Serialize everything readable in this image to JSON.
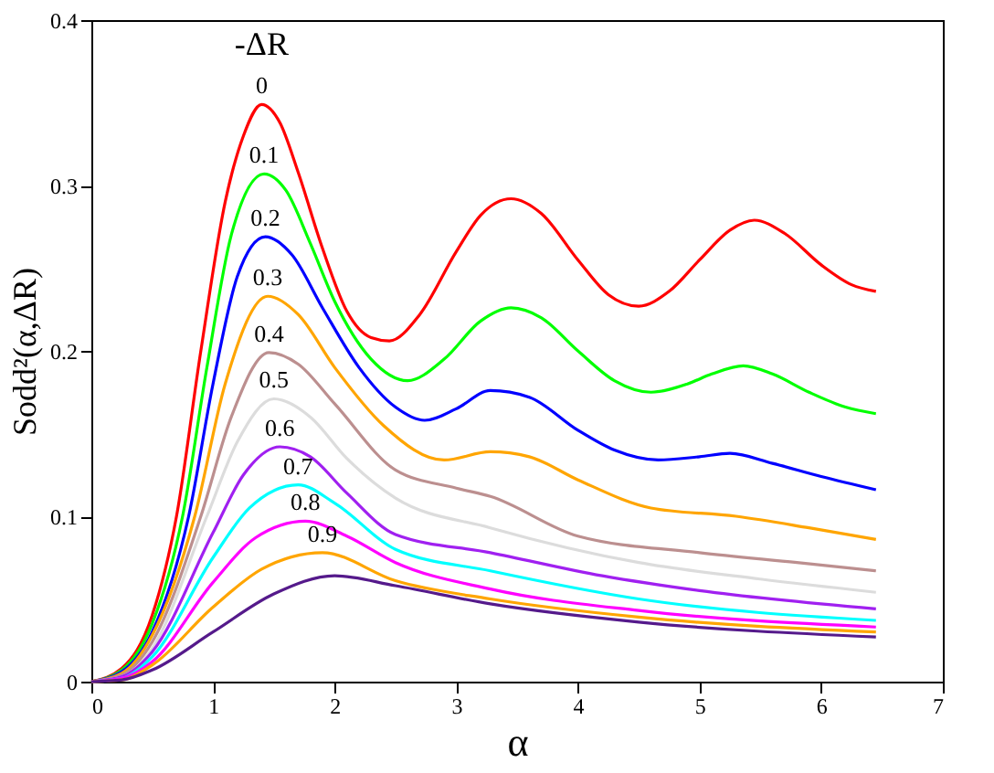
{
  "chart_data": {
    "type": "line",
    "xlabel": "α",
    "ylabel": "Sodd²(α,ΔR)",
    "legend_title": "-ΔR",
    "xlim": [
      0,
      7
    ],
    "xticks": [
      0,
      1,
      2,
      3,
      4,
      5,
      6,
      7
    ],
    "ylim": [
      0,
      0.4
    ],
    "yticks": [
      0,
      0.1,
      0.2,
      0.3,
      0.4
    ],
    "grid": false,
    "legend": false,
    "series": [
      {
        "name": "0",
        "color": "#ff0000",
        "x": [
          0,
          0.25,
          0.5,
          0.7,
          0.9,
          1.1,
          1.25,
          1.4,
          1.55,
          1.7,
          1.9,
          2.1,
          2.3,
          2.45,
          2.7,
          3.0,
          3.2,
          3.45,
          3.7,
          4.0,
          4.25,
          4.5,
          4.75,
          5.0,
          5.25,
          5.45,
          5.7,
          6.0,
          6.25,
          6.45
        ],
        "values": [
          0,
          0.008,
          0.04,
          0.1,
          0.2,
          0.29,
          0.33,
          0.349,
          0.338,
          0.308,
          0.262,
          0.224,
          0.208,
          0.206,
          0.222,
          0.26,
          0.282,
          0.292,
          0.283,
          0.255,
          0.234,
          0.227,
          0.236,
          0.255,
          0.273,
          0.279,
          0.271,
          0.252,
          0.24,
          0.236
        ]
      },
      {
        "name": "0.1",
        "color": "#00ff00",
        "x": [
          0,
          0.25,
          0.5,
          0.75,
          0.95,
          1.15,
          1.42,
          1.6,
          1.8,
          2.0,
          2.3,
          2.6,
          2.9,
          3.2,
          3.45,
          3.7,
          4.0,
          4.3,
          4.6,
          4.9,
          5.1,
          5.36,
          5.6,
          5.9,
          6.2,
          6.45
        ],
        "values": [
          0,
          0.007,
          0.035,
          0.1,
          0.19,
          0.27,
          0.307,
          0.297,
          0.265,
          0.23,
          0.195,
          0.182,
          0.195,
          0.218,
          0.226,
          0.22,
          0.2,
          0.182,
          0.175,
          0.18,
          0.186,
          0.191,
          0.186,
          0.175,
          0.166,
          0.162
        ]
      },
      {
        "name": "0.2",
        "color": "#0000ff",
        "x": [
          0,
          0.25,
          0.5,
          0.8,
          1.0,
          1.2,
          1.43,
          1.65,
          1.9,
          2.2,
          2.5,
          2.74,
          3.0,
          3.28,
          3.6,
          4.0,
          4.3,
          4.66,
          5.0,
          5.25,
          5.6,
          6.0,
          6.45
        ],
        "values": [
          0,
          0.006,
          0.03,
          0.1,
          0.18,
          0.245,
          0.269,
          0.258,
          0.226,
          0.19,
          0.166,
          0.158,
          0.165,
          0.176,
          0.172,
          0.152,
          0.14,
          0.134,
          0.136,
          0.138,
          0.132,
          0.124,
          0.116
        ]
      },
      {
        "name": "0.3",
        "color": "#ffa500",
        "x": [
          0,
          0.25,
          0.5,
          0.85,
          1.1,
          1.45,
          1.7,
          2.0,
          2.4,
          2.9,
          3.28,
          3.6,
          4.0,
          4.6,
          5.3,
          5.9,
          6.45
        ],
        "values": [
          0,
          0.005,
          0.028,
          0.1,
          0.18,
          0.233,
          0.222,
          0.19,
          0.155,
          0.134,
          0.139,
          0.136,
          0.122,
          0.105,
          0.1,
          0.093,
          0.086
        ]
      },
      {
        "name": "0.4",
        "color": "#bc8f8f",
        "x": [
          0,
          0.25,
          0.5,
          0.9,
          1.15,
          1.46,
          1.7,
          2.0,
          2.5,
          3.0,
          3.28,
          4.0,
          5.0,
          5.8,
          6.45
        ],
        "values": [
          0,
          0.004,
          0.024,
          0.1,
          0.16,
          0.199,
          0.192,
          0.168,
          0.128,
          0.117,
          0.112,
          0.088,
          0.078,
          0.072,
          0.067
        ]
      },
      {
        "name": "0.5",
        "color": "#dcdcdc",
        "x": [
          0,
          0.25,
          0.5,
          0.95,
          1.2,
          1.5,
          1.8,
          2.1,
          2.5,
          3.28,
          4.5,
          5.5,
          6.45
        ],
        "values": [
          0,
          0.003,
          0.02,
          0.1,
          0.145,
          0.171,
          0.16,
          0.135,
          0.111,
          0.093,
          0.072,
          0.062,
          0.054
        ]
      },
      {
        "name": "0.6",
        "color": "#a020f0",
        "x": [
          0,
          0.25,
          0.5,
          1.0,
          1.25,
          1.55,
          1.8,
          2.1,
          2.5,
          3.28,
          4.2,
          5.0,
          6.45
        ],
        "values": [
          0,
          0.003,
          0.018,
          0.09,
          0.125,
          0.142,
          0.136,
          0.114,
          0.089,
          0.078,
          0.064,
          0.055,
          0.044
        ]
      },
      {
        "name": "0.7",
        "color": "#00ffff",
        "x": [
          0,
          0.25,
          0.5,
          1.0,
          1.3,
          1.7,
          2.0,
          2.5,
          3.28,
          4.5,
          6.45
        ],
        "values": [
          0,
          0.002,
          0.015,
          0.075,
          0.105,
          0.119,
          0.108,
          0.08,
          0.067,
          0.05,
          0.037
        ]
      },
      {
        "name": "0.8",
        "color": "#ff00ff",
        "x": [
          0,
          0.25,
          0.5,
          1.0,
          1.35,
          1.76,
          2.1,
          2.5,
          3.28,
          4.5,
          6.45
        ],
        "values": [
          0,
          0.002,
          0.012,
          0.06,
          0.087,
          0.097,
          0.088,
          0.072,
          0.056,
          0.043,
          0.033
        ]
      },
      {
        "name": "0.9",
        "color": "#ffa500",
        "x": [
          0,
          0.25,
          0.5,
          1.0,
          1.4,
          1.9,
          2.5,
          3.28,
          4.5,
          6.45
        ],
        "values": [
          0,
          0.001,
          0.01,
          0.045,
          0.068,
          0.078,
          0.061,
          0.05,
          0.039,
          0.03
        ]
      },
      {
        "color": "#551a8b",
        "x": [
          0,
          0.25,
          0.5,
          1.0,
          1.5,
          2.0,
          2.5,
          3.28,
          4.5,
          6.45
        ],
        "values": [
          0,
          0.001,
          0.007,
          0.03,
          0.053,
          0.064,
          0.058,
          0.047,
          0.036,
          0.027
        ]
      }
    ]
  }
}
